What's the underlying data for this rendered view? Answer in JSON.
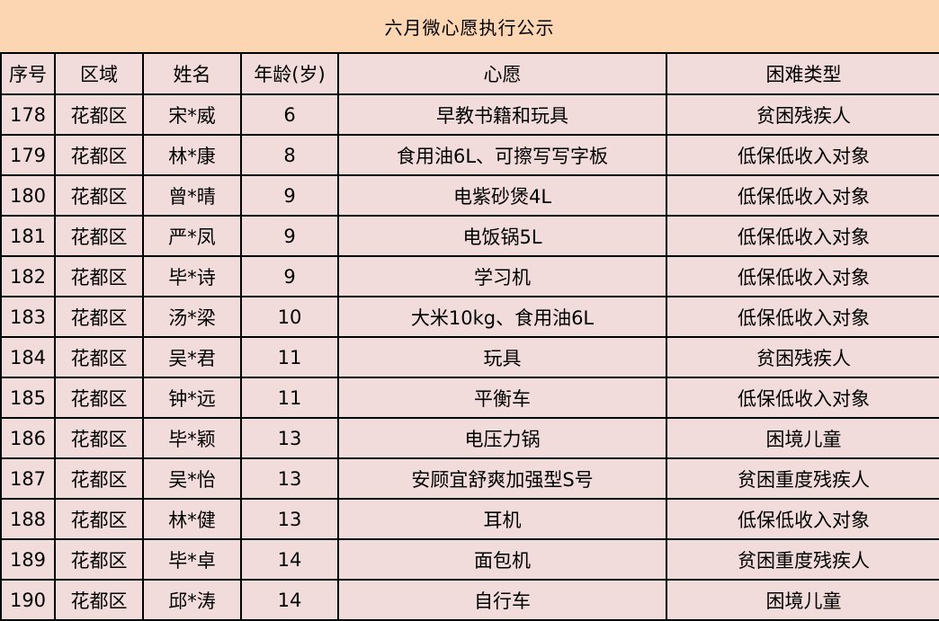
{
  "title": "六月微心愿执行公示",
  "colors": {
    "title_band_background": "#fcd5b2",
    "row_background": "#f2dcdb",
    "border": "#000000",
    "text": "#000000"
  },
  "table": {
    "columns": [
      "序号",
      "区域",
      "姓名",
      "年龄(岁)",
      "心愿",
      "困难类型"
    ],
    "fields": [
      "seq",
      "region",
      "name",
      "age",
      "wish",
      "type"
    ],
    "rows": [
      {
        "seq": "178",
        "region": "花都区",
        "name": "宋*威",
        "age": "6",
        "wish": "早教书籍和玩具",
        "type": "贫困残疾人"
      },
      {
        "seq": "179",
        "region": "花都区",
        "name": "林*康",
        "age": "8",
        "wish": "食用油6L、可擦写写字板",
        "type": "低保低收入对象"
      },
      {
        "seq": "180",
        "region": "花都区",
        "name": "曾*晴",
        "age": "9",
        "wish": "电紫砂煲4L",
        "type": "低保低收入对象"
      },
      {
        "seq": "181",
        "region": "花都区",
        "name": "严*凤",
        "age": "9",
        "wish": "电饭锅5L",
        "type": "低保低收入对象"
      },
      {
        "seq": "182",
        "region": "花都区",
        "name": "毕*诗",
        "age": "9",
        "wish": "学习机",
        "type": "低保低收入对象"
      },
      {
        "seq": "183",
        "region": "花都区",
        "name": "汤*梁",
        "age": "10",
        "wish": "大米10kg、食用油6L",
        "type": "低保低收入对象"
      },
      {
        "seq": "184",
        "region": "花都区",
        "name": "吴*君",
        "age": "11",
        "wish": "玩具",
        "type": "贫困残疾人"
      },
      {
        "seq": "185",
        "region": "花都区",
        "name": "钟*远",
        "age": "11",
        "wish": "平衡车",
        "type": "低保低收入对象"
      },
      {
        "seq": "186",
        "region": "花都区",
        "name": "毕*颖",
        "age": "13",
        "wish": "电压力锅",
        "type": "困境儿童"
      },
      {
        "seq": "187",
        "region": "花都区",
        "name": "吴*怡",
        "age": "13",
        "wish": "安顾宜舒爽加强型S号",
        "type": "贫困重度残疾人"
      },
      {
        "seq": "188",
        "region": "花都区",
        "name": "林*健",
        "age": "13",
        "wish": "耳机",
        "type": "低保低收入对象"
      },
      {
        "seq": "189",
        "region": "花都区",
        "name": "毕*卓",
        "age": "14",
        "wish": "面包机",
        "type": "贫困重度残疾人"
      },
      {
        "seq": "190",
        "region": "花都区",
        "name": "邱*涛",
        "age": "14",
        "wish": "自行车",
        "type": "困境儿童"
      }
    ]
  }
}
